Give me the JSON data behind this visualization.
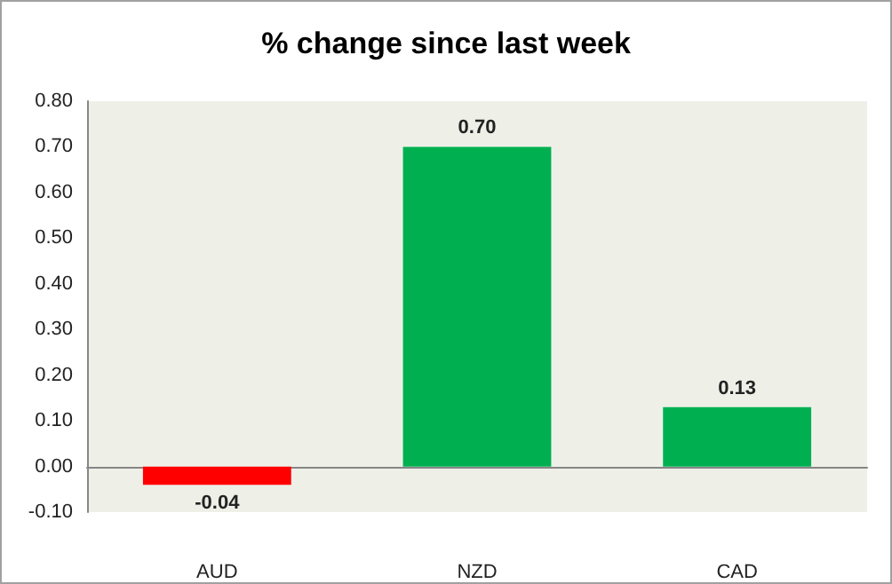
{
  "chart_data": {
    "type": "bar",
    "title": "% change since last week",
    "categories": [
      "AUD",
      "NZD",
      "CAD"
    ],
    "values": [
      -0.04,
      0.7,
      0.13
    ],
    "colors": [
      "#ff0000",
      "#00b050",
      "#00b050"
    ],
    "value_labels": [
      "-0.04",
      "0.70",
      "0.13"
    ],
    "ylim": [
      -0.1,
      0.8
    ],
    "yticks": [
      {
        "value": -0.1,
        "label": "-0.10"
      },
      {
        "value": 0,
        "label": "0.00"
      },
      {
        "value": 0.1,
        "label": "0.10"
      },
      {
        "value": 0.2,
        "label": "0.20"
      },
      {
        "value": 0.3,
        "label": "0.30"
      },
      {
        "value": 0.4,
        "label": "0.40"
      },
      {
        "value": 0.5,
        "label": "0.50"
      },
      {
        "value": 0.6,
        "label": "0.60"
      },
      {
        "value": 0.7,
        "label": "0.70"
      },
      {
        "value": 0.8,
        "label": "0.80"
      }
    ],
    "relative": false
  }
}
